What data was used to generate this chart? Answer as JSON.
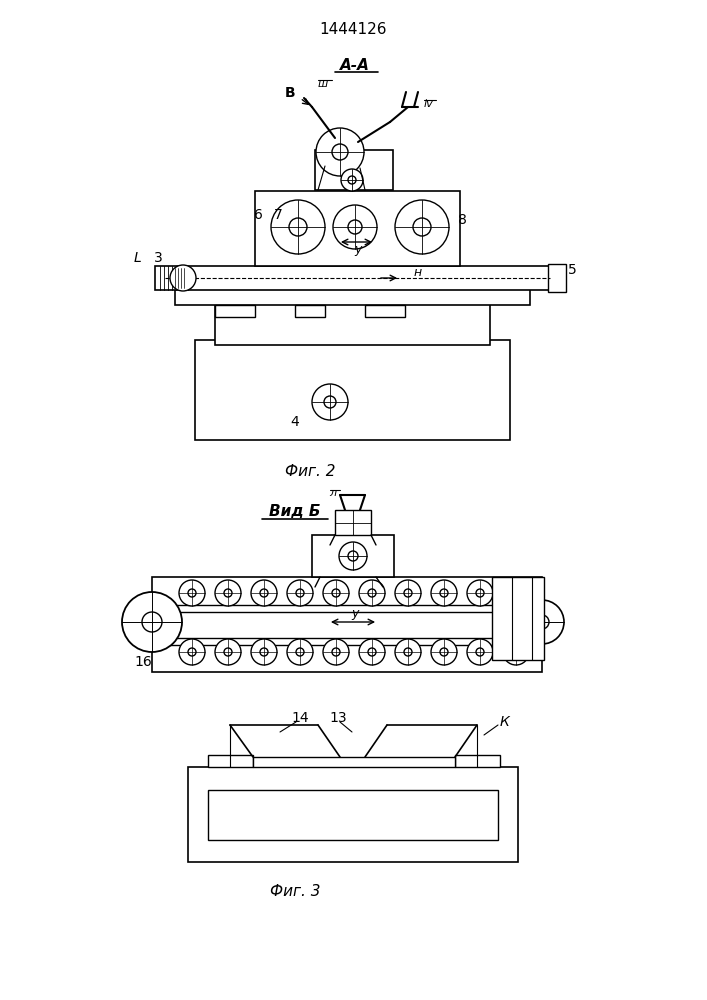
{
  "patent_number": "1444126",
  "fig2_label": "А-А",
  "fig2_caption": "Фиг. 2",
  "fig3_title": "Вид Б",
  "fig3_caption": "Фиг. 3",
  "bg_color": "#ffffff",
  "line_color": "#000000",
  "line_width": 1.0,
  "fig_size": [
    7.07,
    10.0
  ],
  "dpi": 100
}
